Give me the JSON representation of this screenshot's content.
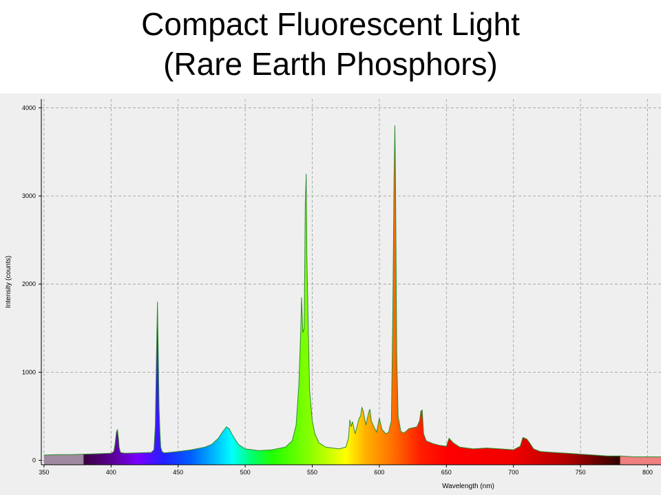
{
  "title_lines": [
    "Compact Fluorescent Light",
    "(Rare Earth Phosphors)"
  ],
  "chart_data": {
    "type": "area",
    "title": "Compact Fluorescent Light (Rare Earth Phosphors)",
    "xlabel": "Wavelength (nm)",
    "ylabel": "Intensity (counts)",
    "xlim": [
      348,
      810
    ],
    "ylim": [
      -50,
      4100
    ],
    "x_ticks": [
      350,
      400,
      450,
      500,
      550,
      600,
      650,
      700,
      750,
      800
    ],
    "y_ticks": [
      0,
      1000,
      2000,
      3000,
      4000
    ],
    "grid": true,
    "fill": "visible-spectrum gradient under curve",
    "line_color": "#2e8b2e",
    "series": [
      {
        "x": [
          350,
          360,
          370,
          380,
          390,
          400,
          402,
          403,
          404,
          404.7,
          405.5,
          406,
          407,
          410,
          420,
          430,
          432,
          433,
          434,
          434.6,
          435,
          435.8,
          436.5,
          437,
          438,
          439,
          440,
          450,
          460,
          470,
          475,
          480,
          483,
          486,
          488,
          490,
          492,
          495,
          500,
          510,
          520,
          530,
          535,
          538,
          540,
          541.5,
          542,
          543,
          544,
          544.8,
          545.5,
          546,
          547,
          548,
          550,
          552,
          555,
          560,
          565,
          570,
          575,
          577,
          578,
          579,
          580,
          582,
          585,
          586,
          587,
          588,
          590,
          592,
          593,
          594,
          596,
          598,
          600,
          602,
          605,
          607,
          609,
          610,
          611,
          611.6,
          612,
          612.5,
          613,
          614,
          616,
          618,
          620,
          622,
          625,
          628,
          630,
          631,
          632,
          633,
          635,
          640,
          645,
          650,
          652,
          655,
          660,
          670,
          680,
          690,
          700,
          705,
          707,
          710,
          712,
          715,
          720,
          730,
          740,
          750,
          760,
          770,
          780,
          790,
          800,
          810
        ],
        "values": [
          60,
          65,
          65,
          70,
          75,
          80,
          100,
          180,
          320,
          350,
          250,
          150,
          90,
          80,
          85,
          90,
          120,
          400,
          1300,
          1800,
          1400,
          600,
          300,
          150,
          100,
          90,
          85,
          100,
          120,
          150,
          180,
          250,
          320,
          380,
          360,
          300,
          250,
          180,
          130,
          110,
          120,
          150,
          220,
          400,
          850,
          1500,
          1850,
          1450,
          1500,
          2900,
          3250,
          2300,
          1500,
          800,
          450,
          300,
          200,
          150,
          140,
          130,
          150,
          250,
          460,
          380,
          440,
          300,
          480,
          500,
          600,
          560,
          400,
          540,
          580,
          450,
          380,
          320,
          480,
          350,
          300,
          320,
          450,
          1600,
          3200,
          3800,
          3300,
          2200,
          1200,
          500,
          330,
          310,
          330,
          360,
          370,
          380,
          450,
          560,
          570,
          300,
          220,
          190,
          170,
          160,
          250,
          200,
          150,
          130,
          140,
          130,
          120,
          160,
          260,
          240,
          200,
          130,
          100,
          90,
          80,
          70,
          60,
          50,
          50,
          40,
          40,
          40
        ]
      }
    ]
  }
}
